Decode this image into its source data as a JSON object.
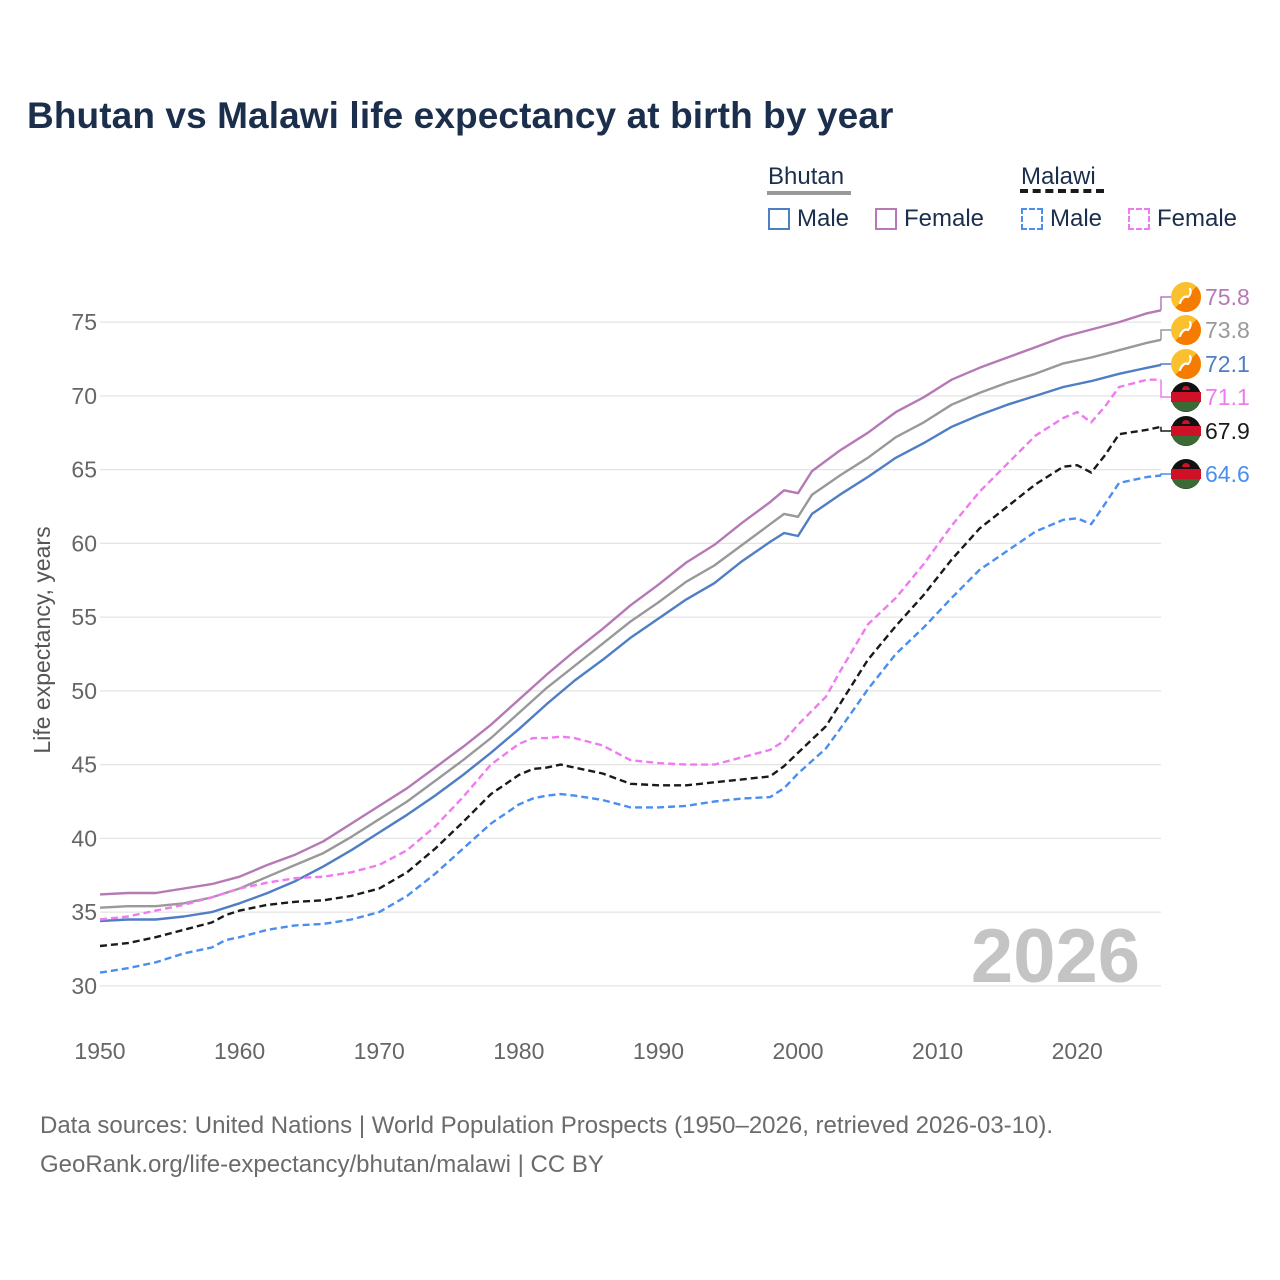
{
  "title": "Bhutan vs Malawi life expectancy at birth by year",
  "year_watermark": "2026",
  "source": {
    "line1": "Data sources: United Nations | World Population Prospects (1950–2026, retrieved 2026-03-10).",
    "line2": "GeoRank.org/life-expectancy/bhutan/malawi | CC BY"
  },
  "legend": {
    "groups": [
      {
        "label": "Bhutan",
        "line_color": "#999999",
        "dashed": false,
        "items": [
          {
            "label": "Male",
            "color": "#4f7ec4"
          },
          {
            "label": "Female",
            "color": "#b57ab5"
          }
        ]
      },
      {
        "label": "Malawi",
        "line_color": "#1a1a1a",
        "dashed": true,
        "items": [
          {
            "label": "Male",
            "color": "#4a8ef0"
          },
          {
            "label": "Female",
            "color": "#f07af0"
          }
        ]
      }
    ]
  },
  "chart_data": {
    "type": "line",
    "title": "Bhutan vs Malawi life expectancy at birth by year",
    "xlabel": "",
    "ylabel": "Life expectancy, years",
    "xlim": [
      1950,
      2026
    ],
    "ylim": [
      28.5,
      76.5
    ],
    "xticks": [
      1950,
      1960,
      1970,
      1980,
      1990,
      2000,
      2010,
      2020
    ],
    "yticks": [
      30,
      35,
      40,
      45,
      50,
      55,
      60,
      65,
      70,
      75
    ],
    "grid": true,
    "series": [
      {
        "name": "Bhutan Female",
        "country": "Bhutan",
        "color": "#b57ab5",
        "dashed": false,
        "end_label": "75.8",
        "points": [
          [
            1950,
            36.2
          ],
          [
            1952,
            36.3
          ],
          [
            1954,
            36.3
          ],
          [
            1956,
            36.6
          ],
          [
            1958,
            36.9
          ],
          [
            1960,
            37.4
          ],
          [
            1962,
            38.2
          ],
          [
            1964,
            38.9
          ],
          [
            1966,
            39.8
          ],
          [
            1968,
            41.0
          ],
          [
            1970,
            42.2
          ],
          [
            1972,
            43.4
          ],
          [
            1974,
            44.8
          ],
          [
            1976,
            46.2
          ],
          [
            1978,
            47.7
          ],
          [
            1980,
            49.4
          ],
          [
            1982,
            51.1
          ],
          [
            1984,
            52.7
          ],
          [
            1986,
            54.2
          ],
          [
            1988,
            55.8
          ],
          [
            1990,
            57.2
          ],
          [
            1992,
            58.7
          ],
          [
            1994,
            59.9
          ],
          [
            1996,
            61.4
          ],
          [
            1998,
            62.8
          ],
          [
            1999,
            63.6
          ],
          [
            2000,
            63.4
          ],
          [
            2001,
            64.9
          ],
          [
            2003,
            66.3
          ],
          [
            2005,
            67.5
          ],
          [
            2007,
            68.9
          ],
          [
            2009,
            69.9
          ],
          [
            2011,
            71.1
          ],
          [
            2013,
            71.9
          ],
          [
            2015,
            72.6
          ],
          [
            2017,
            73.3
          ],
          [
            2019,
            74.0
          ],
          [
            2021,
            74.5
          ],
          [
            2023,
            75.0
          ],
          [
            2025,
            75.6
          ],
          [
            2026,
            75.8
          ]
        ]
      },
      {
        "name": "Bhutan",
        "country": "Bhutan",
        "color": "#999999",
        "dashed": false,
        "end_label": "73.8",
        "points": [
          [
            1950,
            35.3
          ],
          [
            1952,
            35.4
          ],
          [
            1954,
            35.4
          ],
          [
            1956,
            35.6
          ],
          [
            1958,
            36.0
          ],
          [
            1960,
            36.6
          ],
          [
            1962,
            37.4
          ],
          [
            1964,
            38.2
          ],
          [
            1966,
            39.0
          ],
          [
            1968,
            40.1
          ],
          [
            1970,
            41.3
          ],
          [
            1972,
            42.5
          ],
          [
            1974,
            43.9
          ],
          [
            1976,
            45.3
          ],
          [
            1978,
            46.8
          ],
          [
            1980,
            48.5
          ],
          [
            1982,
            50.2
          ],
          [
            1984,
            51.7
          ],
          [
            1986,
            53.2
          ],
          [
            1988,
            54.7
          ],
          [
            1990,
            56.0
          ],
          [
            1992,
            57.4
          ],
          [
            1994,
            58.5
          ],
          [
            1996,
            59.9
          ],
          [
            1998,
            61.3
          ],
          [
            1999,
            62.0
          ],
          [
            2000,
            61.8
          ],
          [
            2001,
            63.3
          ],
          [
            2003,
            64.6
          ],
          [
            2005,
            65.8
          ],
          [
            2007,
            67.2
          ],
          [
            2009,
            68.2
          ],
          [
            2011,
            69.4
          ],
          [
            2013,
            70.2
          ],
          [
            2015,
            70.9
          ],
          [
            2017,
            71.5
          ],
          [
            2019,
            72.2
          ],
          [
            2021,
            72.6
          ],
          [
            2023,
            73.1
          ],
          [
            2025,
            73.6
          ],
          [
            2026,
            73.8
          ]
        ]
      },
      {
        "name": "Bhutan Male",
        "country": "Bhutan",
        "color": "#4f7ec4",
        "dashed": false,
        "end_label": "72.1",
        "points": [
          [
            1950,
            34.4
          ],
          [
            1952,
            34.5
          ],
          [
            1954,
            34.5
          ],
          [
            1956,
            34.7
          ],
          [
            1958,
            35.0
          ],
          [
            1960,
            35.6
          ],
          [
            1962,
            36.3
          ],
          [
            1964,
            37.1
          ],
          [
            1966,
            38.1
          ],
          [
            1968,
            39.2
          ],
          [
            1970,
            40.4
          ],
          [
            1972,
            41.6
          ],
          [
            1974,
            42.9
          ],
          [
            1976,
            44.3
          ],
          [
            1978,
            45.8
          ],
          [
            1980,
            47.4
          ],
          [
            1982,
            49.1
          ],
          [
            1984,
            50.7
          ],
          [
            1986,
            52.1
          ],
          [
            1988,
            53.6
          ],
          [
            1990,
            54.9
          ],
          [
            1992,
            56.2
          ],
          [
            1994,
            57.3
          ],
          [
            1996,
            58.8
          ],
          [
            1998,
            60.1
          ],
          [
            1999,
            60.7
          ],
          [
            2000,
            60.5
          ],
          [
            2001,
            62.0
          ],
          [
            2003,
            63.3
          ],
          [
            2005,
            64.5
          ],
          [
            2007,
            65.8
          ],
          [
            2009,
            66.8
          ],
          [
            2011,
            67.9
          ],
          [
            2013,
            68.7
          ],
          [
            2015,
            69.4
          ],
          [
            2017,
            70.0
          ],
          [
            2019,
            70.6
          ],
          [
            2021,
            71.0
          ],
          [
            2023,
            71.5
          ],
          [
            2025,
            71.9
          ],
          [
            2026,
            72.1
          ]
        ]
      },
      {
        "name": "Malawi Female",
        "country": "Malawi",
        "color": "#f07af0",
        "dashed": true,
        "end_label": "71.1",
        "points": [
          [
            1950,
            34.5
          ],
          [
            1952,
            34.7
          ],
          [
            1954,
            35.1
          ],
          [
            1956,
            35.5
          ],
          [
            1958,
            36.0
          ],
          [
            1960,
            36.6
          ],
          [
            1962,
            37.0
          ],
          [
            1964,
            37.3
          ],
          [
            1966,
            37.4
          ],
          [
            1968,
            37.7
          ],
          [
            1970,
            38.2
          ],
          [
            1972,
            39.2
          ],
          [
            1974,
            40.8
          ],
          [
            1976,
            42.8
          ],
          [
            1978,
            45.0
          ],
          [
            1980,
            46.4
          ],
          [
            1981,
            46.8
          ],
          [
            1982,
            46.8
          ],
          [
            1983,
            46.9
          ],
          [
            1984,
            46.8
          ],
          [
            1986,
            46.3
          ],
          [
            1988,
            45.3
          ],
          [
            1990,
            45.1
          ],
          [
            1992,
            45.0
          ],
          [
            1994,
            45.0
          ],
          [
            1996,
            45.5
          ],
          [
            1998,
            46.0
          ],
          [
            1999,
            46.6
          ],
          [
            2000,
            47.7
          ],
          [
            2002,
            49.6
          ],
          [
            2003,
            51.3
          ],
          [
            2005,
            54.5
          ],
          [
            2007,
            56.3
          ],
          [
            2009,
            58.6
          ],
          [
            2011,
            61.2
          ],
          [
            2013,
            63.5
          ],
          [
            2015,
            65.4
          ],
          [
            2017,
            67.3
          ],
          [
            2019,
            68.5
          ],
          [
            2020,
            68.9
          ],
          [
            2021,
            68.2
          ],
          [
            2022,
            69.3
          ],
          [
            2023,
            70.6
          ],
          [
            2025,
            71.1
          ],
          [
            2026,
            71.1
          ]
        ]
      },
      {
        "name": "Malawi",
        "country": "Malawi",
        "color": "#1a1a1a",
        "dashed": true,
        "end_label": "67.9",
        "points": [
          [
            1950,
            32.7
          ],
          [
            1952,
            32.9
          ],
          [
            1954,
            33.3
          ],
          [
            1956,
            33.8
          ],
          [
            1958,
            34.3
          ],
          [
            1959,
            34.8
          ],
          [
            1960,
            35.1
          ],
          [
            1962,
            35.5
          ],
          [
            1964,
            35.7
          ],
          [
            1966,
            35.8
          ],
          [
            1968,
            36.1
          ],
          [
            1970,
            36.6
          ],
          [
            1972,
            37.7
          ],
          [
            1974,
            39.3
          ],
          [
            1976,
            41.1
          ],
          [
            1978,
            43.0
          ],
          [
            1980,
            44.3
          ],
          [
            1981,
            44.7
          ],
          [
            1982,
            44.8
          ],
          [
            1983,
            45.0
          ],
          [
            1984,
            44.8
          ],
          [
            1986,
            44.4
          ],
          [
            1988,
            43.7
          ],
          [
            1990,
            43.6
          ],
          [
            1992,
            43.6
          ],
          [
            1994,
            43.8
          ],
          [
            1996,
            44.0
          ],
          [
            1998,
            44.2
          ],
          [
            1999,
            44.9
          ],
          [
            2000,
            45.8
          ],
          [
            2002,
            47.6
          ],
          [
            2003,
            49.1
          ],
          [
            2005,
            52.1
          ],
          [
            2007,
            54.4
          ],
          [
            2009,
            56.5
          ],
          [
            2011,
            58.9
          ],
          [
            2013,
            61.0
          ],
          [
            2015,
            62.5
          ],
          [
            2017,
            64.0
          ],
          [
            2019,
            65.2
          ],
          [
            2020,
            65.3
          ],
          [
            2021,
            64.8
          ],
          [
            2022,
            66.0
          ],
          [
            2023,
            67.4
          ],
          [
            2025,
            67.7
          ],
          [
            2026,
            67.9
          ]
        ]
      },
      {
        "name": "Malawi Male",
        "country": "Malawi",
        "color": "#4a8ef0",
        "dashed": true,
        "end_label": "64.6",
        "points": [
          [
            1950,
            30.9
          ],
          [
            1952,
            31.2
          ],
          [
            1954,
            31.6
          ],
          [
            1956,
            32.2
          ],
          [
            1958,
            32.6
          ],
          [
            1959,
            33.1
          ],
          [
            1960,
            33.3
          ],
          [
            1962,
            33.8
          ],
          [
            1964,
            34.1
          ],
          [
            1966,
            34.2
          ],
          [
            1968,
            34.5
          ],
          [
            1970,
            35.0
          ],
          [
            1972,
            36.1
          ],
          [
            1974,
            37.6
          ],
          [
            1976,
            39.3
          ],
          [
            1978,
            41.0
          ],
          [
            1980,
            42.3
          ],
          [
            1981,
            42.7
          ],
          [
            1982,
            42.9
          ],
          [
            1983,
            43.0
          ],
          [
            1984,
            42.9
          ],
          [
            1986,
            42.6
          ],
          [
            1988,
            42.1
          ],
          [
            1990,
            42.1
          ],
          [
            1992,
            42.2
          ],
          [
            1994,
            42.5
          ],
          [
            1996,
            42.7
          ],
          [
            1998,
            42.8
          ],
          [
            1999,
            43.4
          ],
          [
            2000,
            44.4
          ],
          [
            2002,
            46.1
          ],
          [
            2003,
            47.4
          ],
          [
            2005,
            50.1
          ],
          [
            2007,
            52.5
          ],
          [
            2009,
            54.3
          ],
          [
            2011,
            56.3
          ],
          [
            2013,
            58.2
          ],
          [
            2015,
            59.5
          ],
          [
            2017,
            60.8
          ],
          [
            2019,
            61.6
          ],
          [
            2020,
            61.7
          ],
          [
            2021,
            61.3
          ],
          [
            2022,
            62.7
          ],
          [
            2023,
            64.1
          ],
          [
            2025,
            64.5
          ],
          [
            2026,
            64.6
          ]
        ]
      }
    ]
  }
}
